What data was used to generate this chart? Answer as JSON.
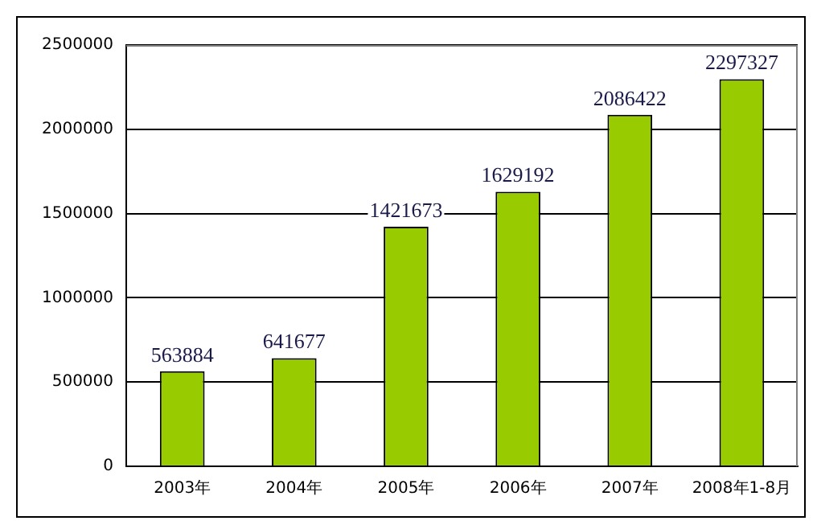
{
  "chart_data": {
    "type": "bar",
    "categories": [
      "2003年",
      "2004年",
      "2005年",
      "2006年",
      "2007年",
      "2008年1-8月"
    ],
    "values": [
      563884,
      641677,
      1421673,
      1629192,
      2086422,
      2297327
    ],
    "color": "#99cc00",
    "ylim": [
      0,
      2500000
    ],
    "yticks": [
      0,
      500000,
      1000000,
      1500000,
      2000000,
      2500000
    ],
    "grid": "y",
    "data_labels": true
  }
}
